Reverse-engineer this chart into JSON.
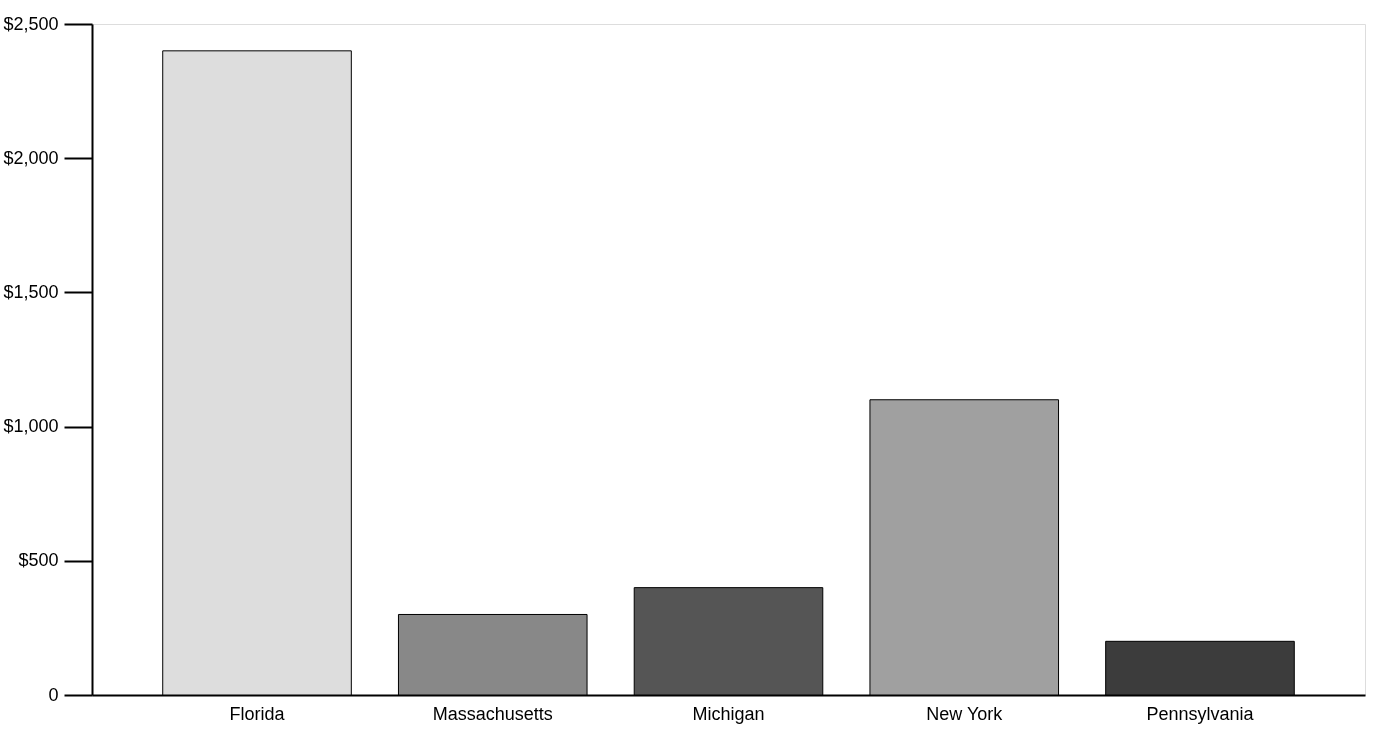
{
  "chart_data": {
    "type": "bar",
    "categories": [
      "Florida",
      "Massachusetts",
      "Michigan",
      "New York",
      "Pennsylvania"
    ],
    "values": [
      2400,
      300,
      400,
      1100,
      200
    ],
    "colors": [
      "#dddddd",
      "#888888",
      "#555555",
      "#a0a0a0",
      "#3c3c3c"
    ],
    "ylim": [
      0,
      2500
    ],
    "yticks": [
      0,
      {
        "value": 500,
        "label": "$500"
      },
      {
        "value": 1000,
        "label": "$1,000"
      },
      {
        "value": 1500,
        "label": "$1,500"
      },
      {
        "value": 2000,
        "label": "$2,000"
      },
      {
        "value": 2500,
        "label": "$2,500"
      }
    ],
    "grid": false
  }
}
